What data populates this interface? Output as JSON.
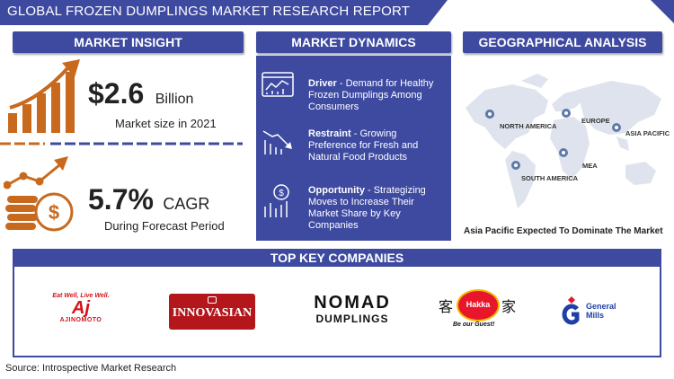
{
  "header": {
    "title": "GLOBAL FROZEN DUMPLINGS MARKET RESEARCH REPORT"
  },
  "market_insight": {
    "heading": "MARKET INSIGHT",
    "size_value": "$2.6",
    "size_unit": "Billion",
    "size_caption": "Market size in 2021",
    "cagr_value": "5.7%",
    "cagr_unit": "CAGR",
    "cagr_caption": "During Forecast Period"
  },
  "market_dynamics": {
    "heading": "MARKET DYNAMICS",
    "items": [
      {
        "label": "Driver",
        "text": " - Demand for Healthy Frozen Dumplings Among Consumers"
      },
      {
        "label": "Restraint",
        "text": " - Growing Preference for Fresh and Natural Food Products"
      },
      {
        "label": "Opportunity",
        "text": " - Strategizing Moves to Increase Their Market Share by Key Companies"
      }
    ]
  },
  "geo": {
    "heading": "GEOGRAPHICAL ANALYSIS",
    "regions": [
      "NORTH AMERICA",
      "EUROPE",
      "ASIA PACIFIC",
      "MEA",
      "SOUTH AMERICA"
    ],
    "caption": "Asia Pacific Expected To Dominate The Market"
  },
  "companies": {
    "heading": "TOP KEY COMPANIES",
    "ajinomoto_tagline": "Eat Well, Live Well.",
    "ajinomoto_mark": "Aj",
    "ajinomoto_name": "AJINOMOTO",
    "innovasian": "INNOVASIAN",
    "nomad_line1": "NOMAD",
    "nomad_line2": "DUMPLINGS",
    "hakka_left": "客",
    "hakka_right": "家",
    "hakka_mark": "Hakka",
    "hakka_tag": "Be our Guest!",
    "general_mills_1": "General",
    "general_mills_2": "Mills"
  },
  "source": "Source: Introspective Market Research",
  "colors": {
    "brand": "#3d4aa0",
    "accent": "#c86a1e",
    "map": "#dfe3ee",
    "pin": "#5f7aa8"
  }
}
